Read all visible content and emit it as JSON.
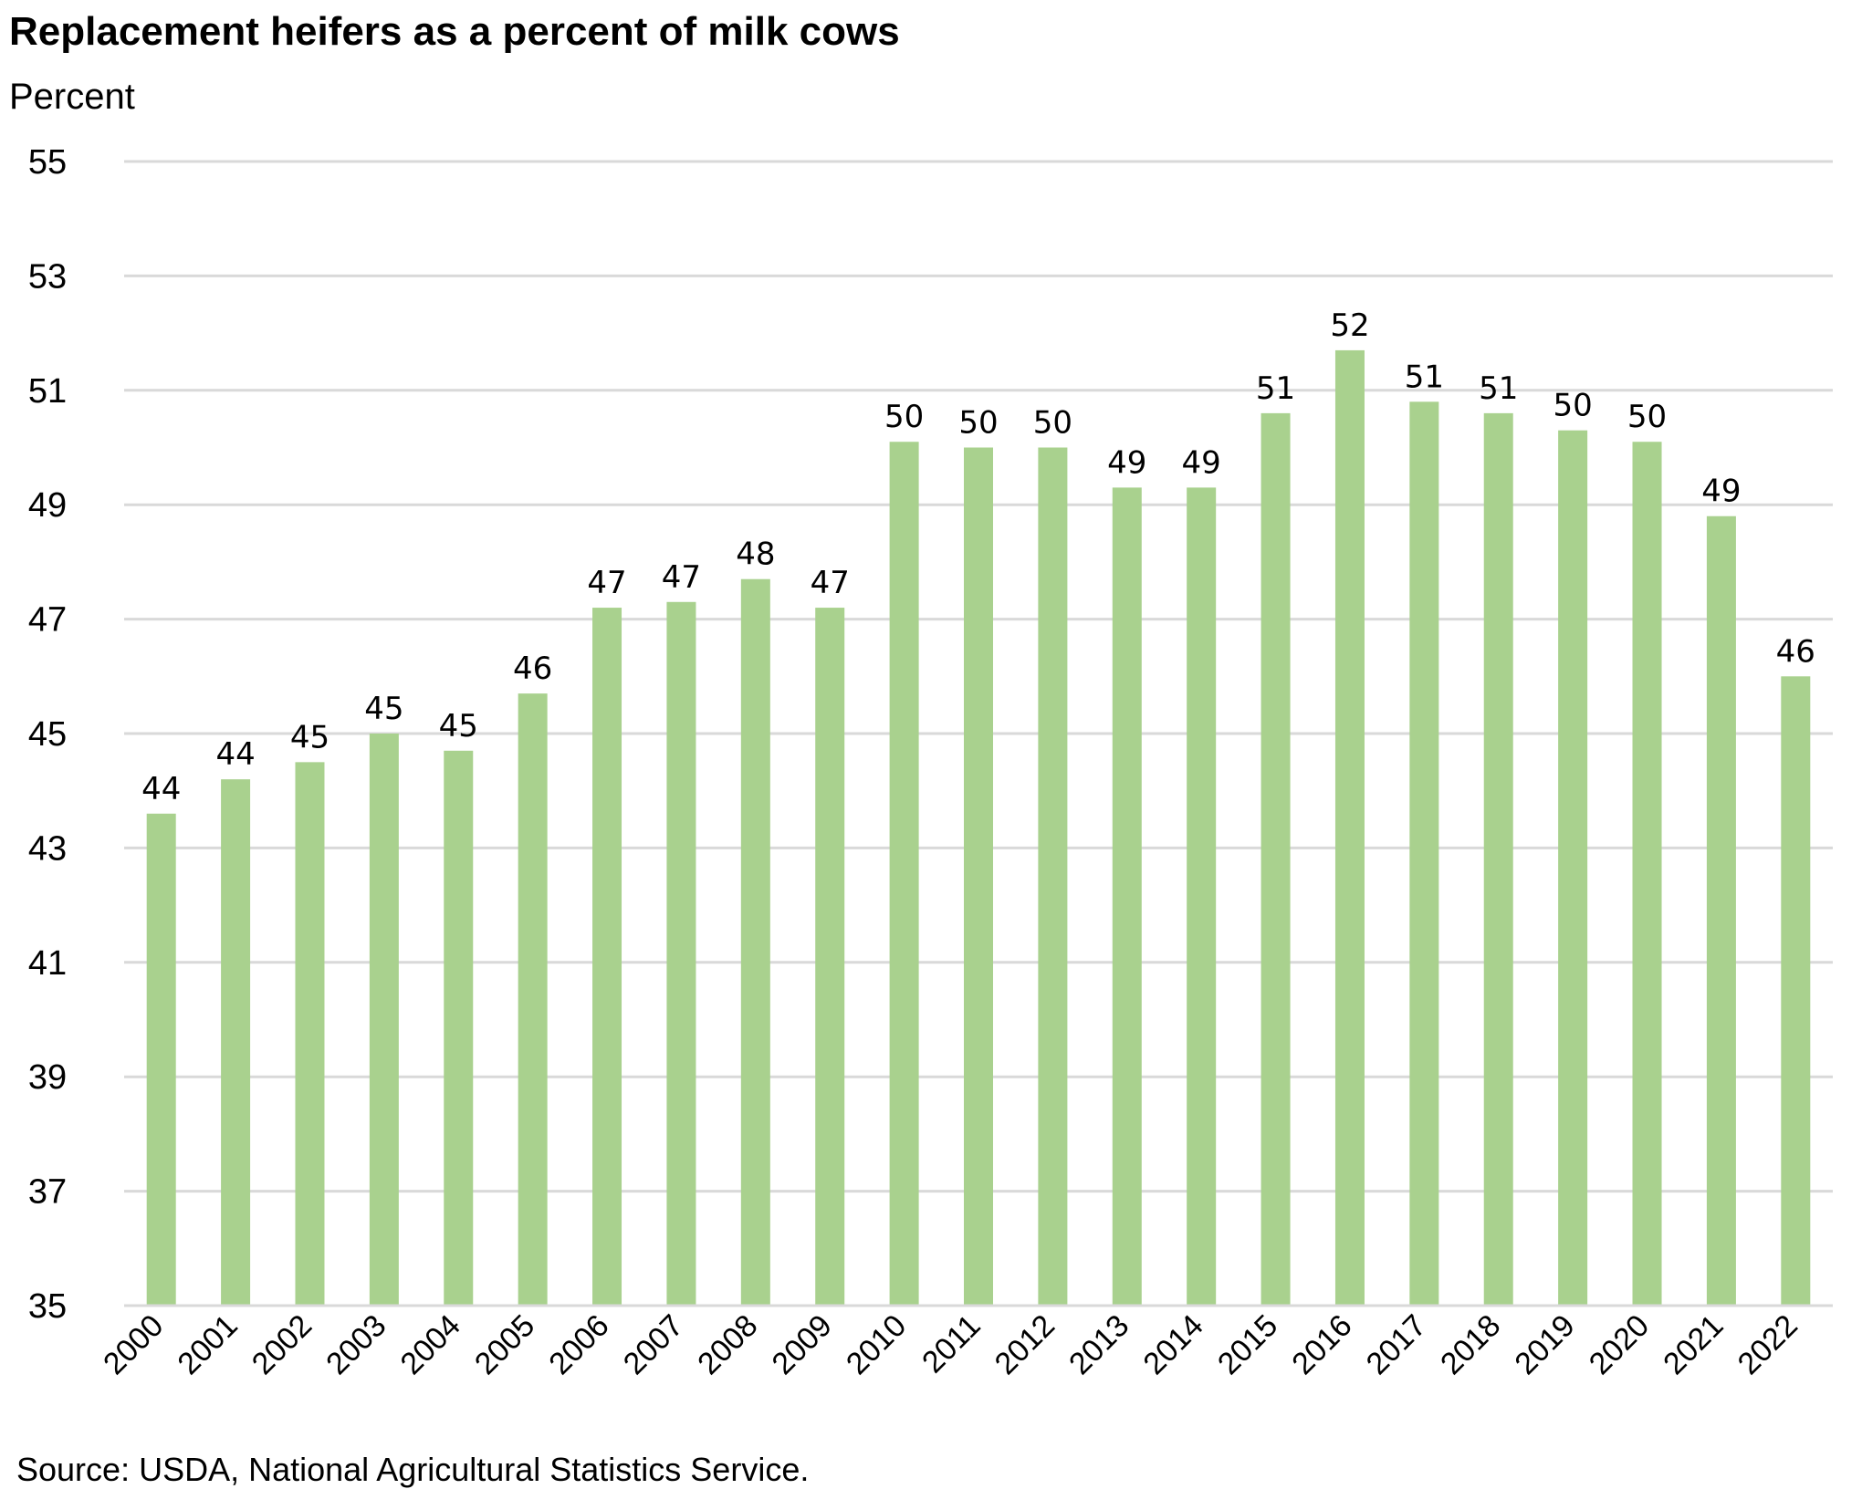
{
  "title": "Replacement heifers as a percent of milk cows",
  "unit_label": "Percent",
  "source": "Source: USDA, National Agricultural Statistics Service.",
  "colors": {
    "bar": "#a9d18e",
    "grid": "#d9d9d9",
    "axis": "#d9d9d9"
  },
  "chart_data": {
    "type": "bar",
    "title": "Replacement heifers as a percent of milk cows",
    "ylabel": "Percent",
    "xlabel": "",
    "ylim": [
      35,
      55
    ],
    "yticks": [
      35,
      37,
      39,
      41,
      43,
      45,
      47,
      49,
      51,
      53,
      55
    ],
    "grid": true,
    "legend": "none",
    "categories": [
      "2000",
      "2001",
      "2002",
      "2003",
      "2004",
      "2005",
      "2006",
      "2007",
      "2008",
      "2009",
      "2010",
      "2011",
      "2012",
      "2013",
      "2014",
      "2015",
      "2016",
      "2017",
      "2018",
      "2019",
      "2020",
      "2021",
      "2022"
    ],
    "values": [
      43.6,
      44.2,
      44.5,
      45.0,
      44.7,
      45.7,
      47.2,
      47.3,
      47.7,
      47.2,
      50.1,
      50.0,
      50.0,
      49.3,
      49.3,
      50.6,
      51.7,
      50.8,
      50.6,
      50.3,
      50.1,
      48.8,
      46.0
    ],
    "data_labels": [
      "44",
      "44",
      "45",
      "45",
      "45",
      "46",
      "47",
      "47",
      "48",
      "47",
      "50",
      "50",
      "50",
      "49",
      "49",
      "51",
      "52",
      "51",
      "51",
      "50",
      "50",
      "49",
      "46"
    ]
  }
}
